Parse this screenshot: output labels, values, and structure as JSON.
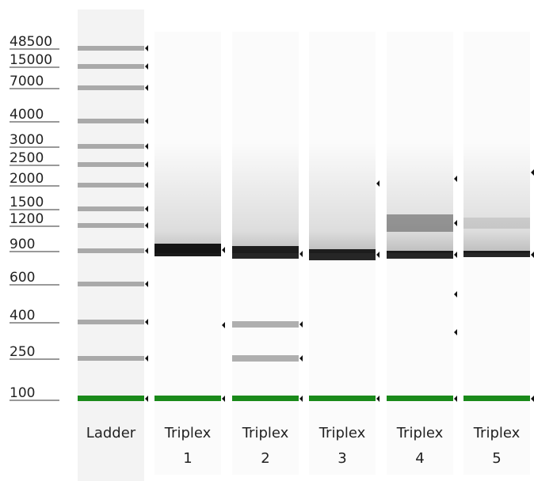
{
  "ladder_sizes": [
    "48500",
    "15000",
    "7000",
    "4000",
    "3000",
    "2500",
    "2000",
    "1500",
    "1200",
    "900",
    "600",
    "400",
    "250",
    "100"
  ],
  "lanes": [
    {
      "name": "Ladder"
    },
    {
      "name": "Triplex",
      "number": "1"
    },
    {
      "name": "Triplex",
      "number": "2"
    },
    {
      "name": "Triplex",
      "number": "3"
    },
    {
      "name": "Triplex",
      "number": "4"
    },
    {
      "name": "Triplex",
      "number": "5"
    }
  ]
}
